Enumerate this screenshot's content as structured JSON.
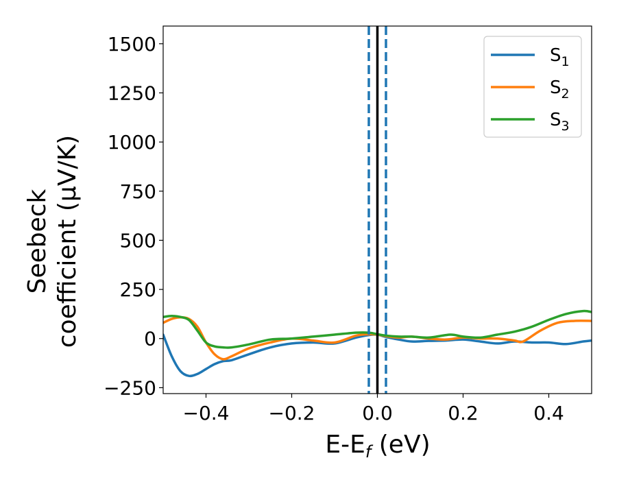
{
  "chart_data": {
    "type": "line",
    "xlabel": {
      "main": "E-E",
      "sub": "f",
      "suffix": " (eV)"
    },
    "ylabel": {
      "line1": "Seebeck",
      "line2": "coefficient  (μV/K)"
    },
    "xlim": [
      -0.5,
      0.5
    ],
    "ylim": [
      -280,
      1590
    ],
    "xticks": [
      {
        "v": -0.4,
        "label": "−0.4"
      },
      {
        "v": -0.2,
        "label": "−0.2"
      },
      {
        "v": 0.0,
        "label": "0.0"
      },
      {
        "v": 0.2,
        "label": "0.2"
      },
      {
        "v": 0.4,
        "label": "0.4"
      }
    ],
    "yticks": [
      {
        "v": -250,
        "label": "−250"
      },
      {
        "v": 0,
        "label": "0"
      },
      {
        "v": 250,
        "label": "250"
      },
      {
        "v": 500,
        "label": "500"
      },
      {
        "v": 750,
        "label": "750"
      },
      {
        "v": 1000,
        "label": "1000"
      },
      {
        "v": 1250,
        "label": "1250"
      },
      {
        "v": 1500,
        "label": "1500"
      }
    ],
    "vlines": [
      {
        "x": -0.02,
        "style": "dashed",
        "color": "#1f77b4"
      },
      {
        "x": 0.0,
        "style": "solid",
        "color": "#000000"
      },
      {
        "x": 0.02,
        "style": "dashed",
        "color": "#1f77b4"
      }
    ],
    "legend_position": "top-right",
    "series": [
      {
        "name": "S",
        "sub": "1",
        "color": "#1f77b4",
        "x": [
          -0.5,
          -0.48,
          -0.46,
          -0.44,
          -0.42,
          -0.4,
          -0.38,
          -0.36,
          -0.34,
          -0.3,
          -0.25,
          -0.2,
          -0.15,
          -0.1,
          -0.05,
          -0.02,
          0.0,
          0.02,
          0.05,
          0.08,
          0.12,
          0.16,
          0.2,
          0.24,
          0.28,
          0.32,
          0.36,
          0.4,
          0.44,
          0.48,
          0.5
        ],
        "y": [
          20,
          -90,
          -165,
          -190,
          -180,
          -155,
          -130,
          -115,
          -110,
          -80,
          -45,
          -25,
          -20,
          -25,
          5,
          18,
          20,
          8,
          -5,
          -15,
          -12,
          -10,
          -5,
          -15,
          -25,
          -15,
          -20,
          -20,
          -28,
          -15,
          -10
        ]
      },
      {
        "name": "S",
        "sub": "2",
        "color": "#ff7f0e",
        "x": [
          -0.5,
          -0.48,
          -0.46,
          -0.44,
          -0.42,
          -0.4,
          -0.38,
          -0.36,
          -0.34,
          -0.3,
          -0.25,
          -0.2,
          -0.15,
          -0.1,
          -0.05,
          -0.02,
          0.0,
          0.02,
          0.05,
          0.08,
          0.12,
          0.16,
          0.2,
          0.24,
          0.28,
          0.32,
          0.34,
          0.38,
          0.42,
          0.46,
          0.5
        ],
        "y": [
          80,
          100,
          108,
          100,
          60,
          -20,
          -80,
          -105,
          -90,
          -50,
          -20,
          0,
          -10,
          -20,
          15,
          22,
          20,
          12,
          5,
          10,
          0,
          -5,
          5,
          0,
          0,
          -10,
          -15,
          40,
          80,
          90,
          90
        ]
      },
      {
        "name": "S",
        "sub": "3",
        "color": "#2ca02c",
        "x": [
          -0.5,
          -0.48,
          -0.46,
          -0.44,
          -0.42,
          -0.4,
          -0.38,
          -0.36,
          -0.34,
          -0.3,
          -0.25,
          -0.2,
          -0.15,
          -0.1,
          -0.05,
          -0.02,
          0.0,
          0.02,
          0.05,
          0.08,
          0.12,
          0.17,
          0.2,
          0.24,
          0.28,
          0.32,
          0.36,
          0.4,
          0.44,
          0.48,
          0.5
        ],
        "y": [
          110,
          115,
          110,
          95,
          40,
          -20,
          -40,
          -45,
          -45,
          -30,
          -5,
          0,
          10,
          20,
          30,
          30,
          22,
          15,
          10,
          10,
          5,
          20,
          10,
          5,
          20,
          35,
          60,
          95,
          125,
          140,
          135
        ]
      }
    ]
  }
}
